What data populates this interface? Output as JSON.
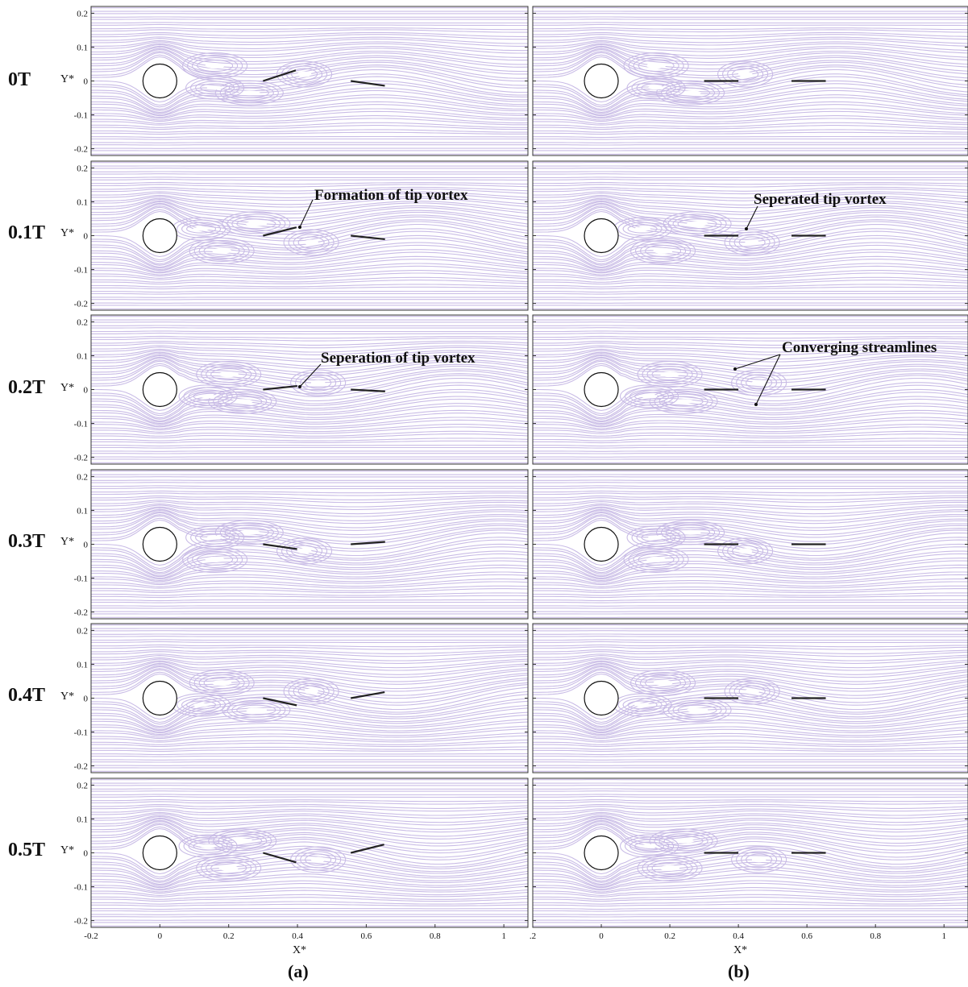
{
  "row_labels": [
    "0T",
    "0.1T",
    "0.2T",
    "0.3T",
    "0.4T",
    "0.5T"
  ],
  "y_axis_label": "Y*",
  "x_axis_label": "X*",
  "y_ticks": [
    "0.2",
    "0.1",
    "0",
    "-0.1",
    "-0.2"
  ],
  "x_ticks_left": [
    "-0.2",
    "0",
    "0.2",
    "0.4",
    "0.6",
    "0.8",
    "1"
  ],
  "x_ticks_right": [
    ".2",
    "0",
    "0.2",
    "0.4",
    "0.6",
    "0.8",
    "1"
  ],
  "subfigure_labels": {
    "a": "(a)",
    "b": "(b)"
  },
  "annotations": {
    "formation": "Formation of tip vortex",
    "seperated": "Seperated tip vortex",
    "seperation": "Seperation of tip vortex",
    "converging": "Converging streamlines"
  },
  "colors": {
    "streamline": "#c9bce6",
    "plate": "#222222",
    "frame": "#333333"
  },
  "plate_angles_deg": {
    "a_front": [
      -18,
      -14,
      -6,
      8,
      12,
      16
    ],
    "a_rear": [
      8,
      6,
      3,
      -4,
      -10,
      -14
    ],
    "b_front": [
      0,
      0,
      0,
      0,
      0,
      0
    ],
    "b_rear": [
      0,
      0,
      0,
      0,
      0,
      0
    ]
  }
}
